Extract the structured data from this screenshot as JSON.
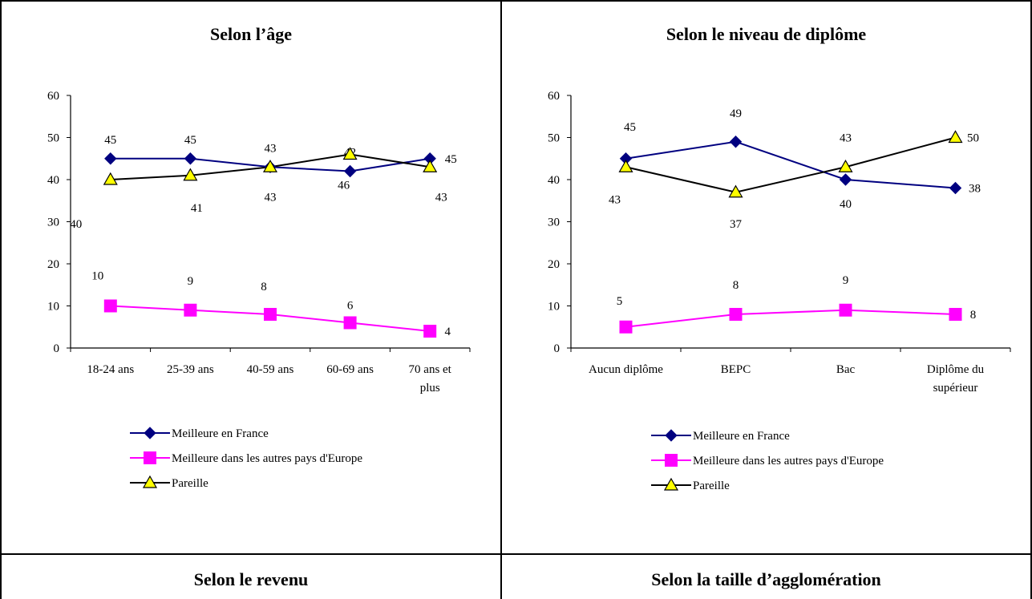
{
  "panels": [
    {
      "title": "Selon l’âge",
      "chart_data": {
        "type": "line",
        "categories": [
          [
            "18-24 ans"
          ],
          [
            "25-39 ans"
          ],
          [
            "40-59 ans"
          ],
          [
            "60-69 ans"
          ],
          [
            "70 ans et",
            "plus"
          ]
        ],
        "ylim": [
          0,
          60
        ],
        "yticks": [
          0,
          10,
          20,
          30,
          40,
          50,
          60
        ],
        "series": [
          {
            "name": "Meilleure en France",
            "values": [
              45,
              45,
              43,
              42,
              45
            ],
            "color": "#000080",
            "marker": "diamond"
          },
          {
            "name": "Meilleure dans les autres pays d'Europe",
            "values": [
              10,
              9,
              8,
              6,
              4
            ],
            "color": "#ff00ff",
            "marker": "square"
          },
          {
            "name": "Pareille",
            "values": [
              40,
              41,
              43,
              46,
              43
            ],
            "color": "#000000",
            "marker": "triangle",
            "fill": "#ffff00"
          }
        ],
        "legend": "bottom"
      }
    },
    {
      "title": "Selon le niveau de diplôme",
      "chart_data": {
        "type": "line",
        "categories": [
          [
            "Aucun diplôme"
          ],
          [
            "BEPC"
          ],
          [
            "Bac"
          ],
          [
            "Diplôme du",
            "supérieur"
          ]
        ],
        "ylim": [
          0,
          60
        ],
        "yticks": [
          0,
          10,
          20,
          30,
          40,
          50,
          60
        ],
        "series": [
          {
            "name": "Meilleure en France",
            "values": [
              45,
              49,
              40,
              38
            ],
            "color": "#000080",
            "marker": "diamond"
          },
          {
            "name": "Meilleure dans les autres pays d'Europe",
            "values": [
              5,
              8,
              9,
              8
            ],
            "color": "#ff00ff",
            "marker": "square"
          },
          {
            "name": "Pareille",
            "values": [
              43,
              37,
              43,
              50
            ],
            "color": "#000000",
            "marker": "triangle",
            "fill": "#ffff00"
          }
        ],
        "legend": "bottom"
      }
    },
    {
      "title": "Selon le revenu"
    },
    {
      "title": "Selon la taille d’agglomération"
    }
  ]
}
